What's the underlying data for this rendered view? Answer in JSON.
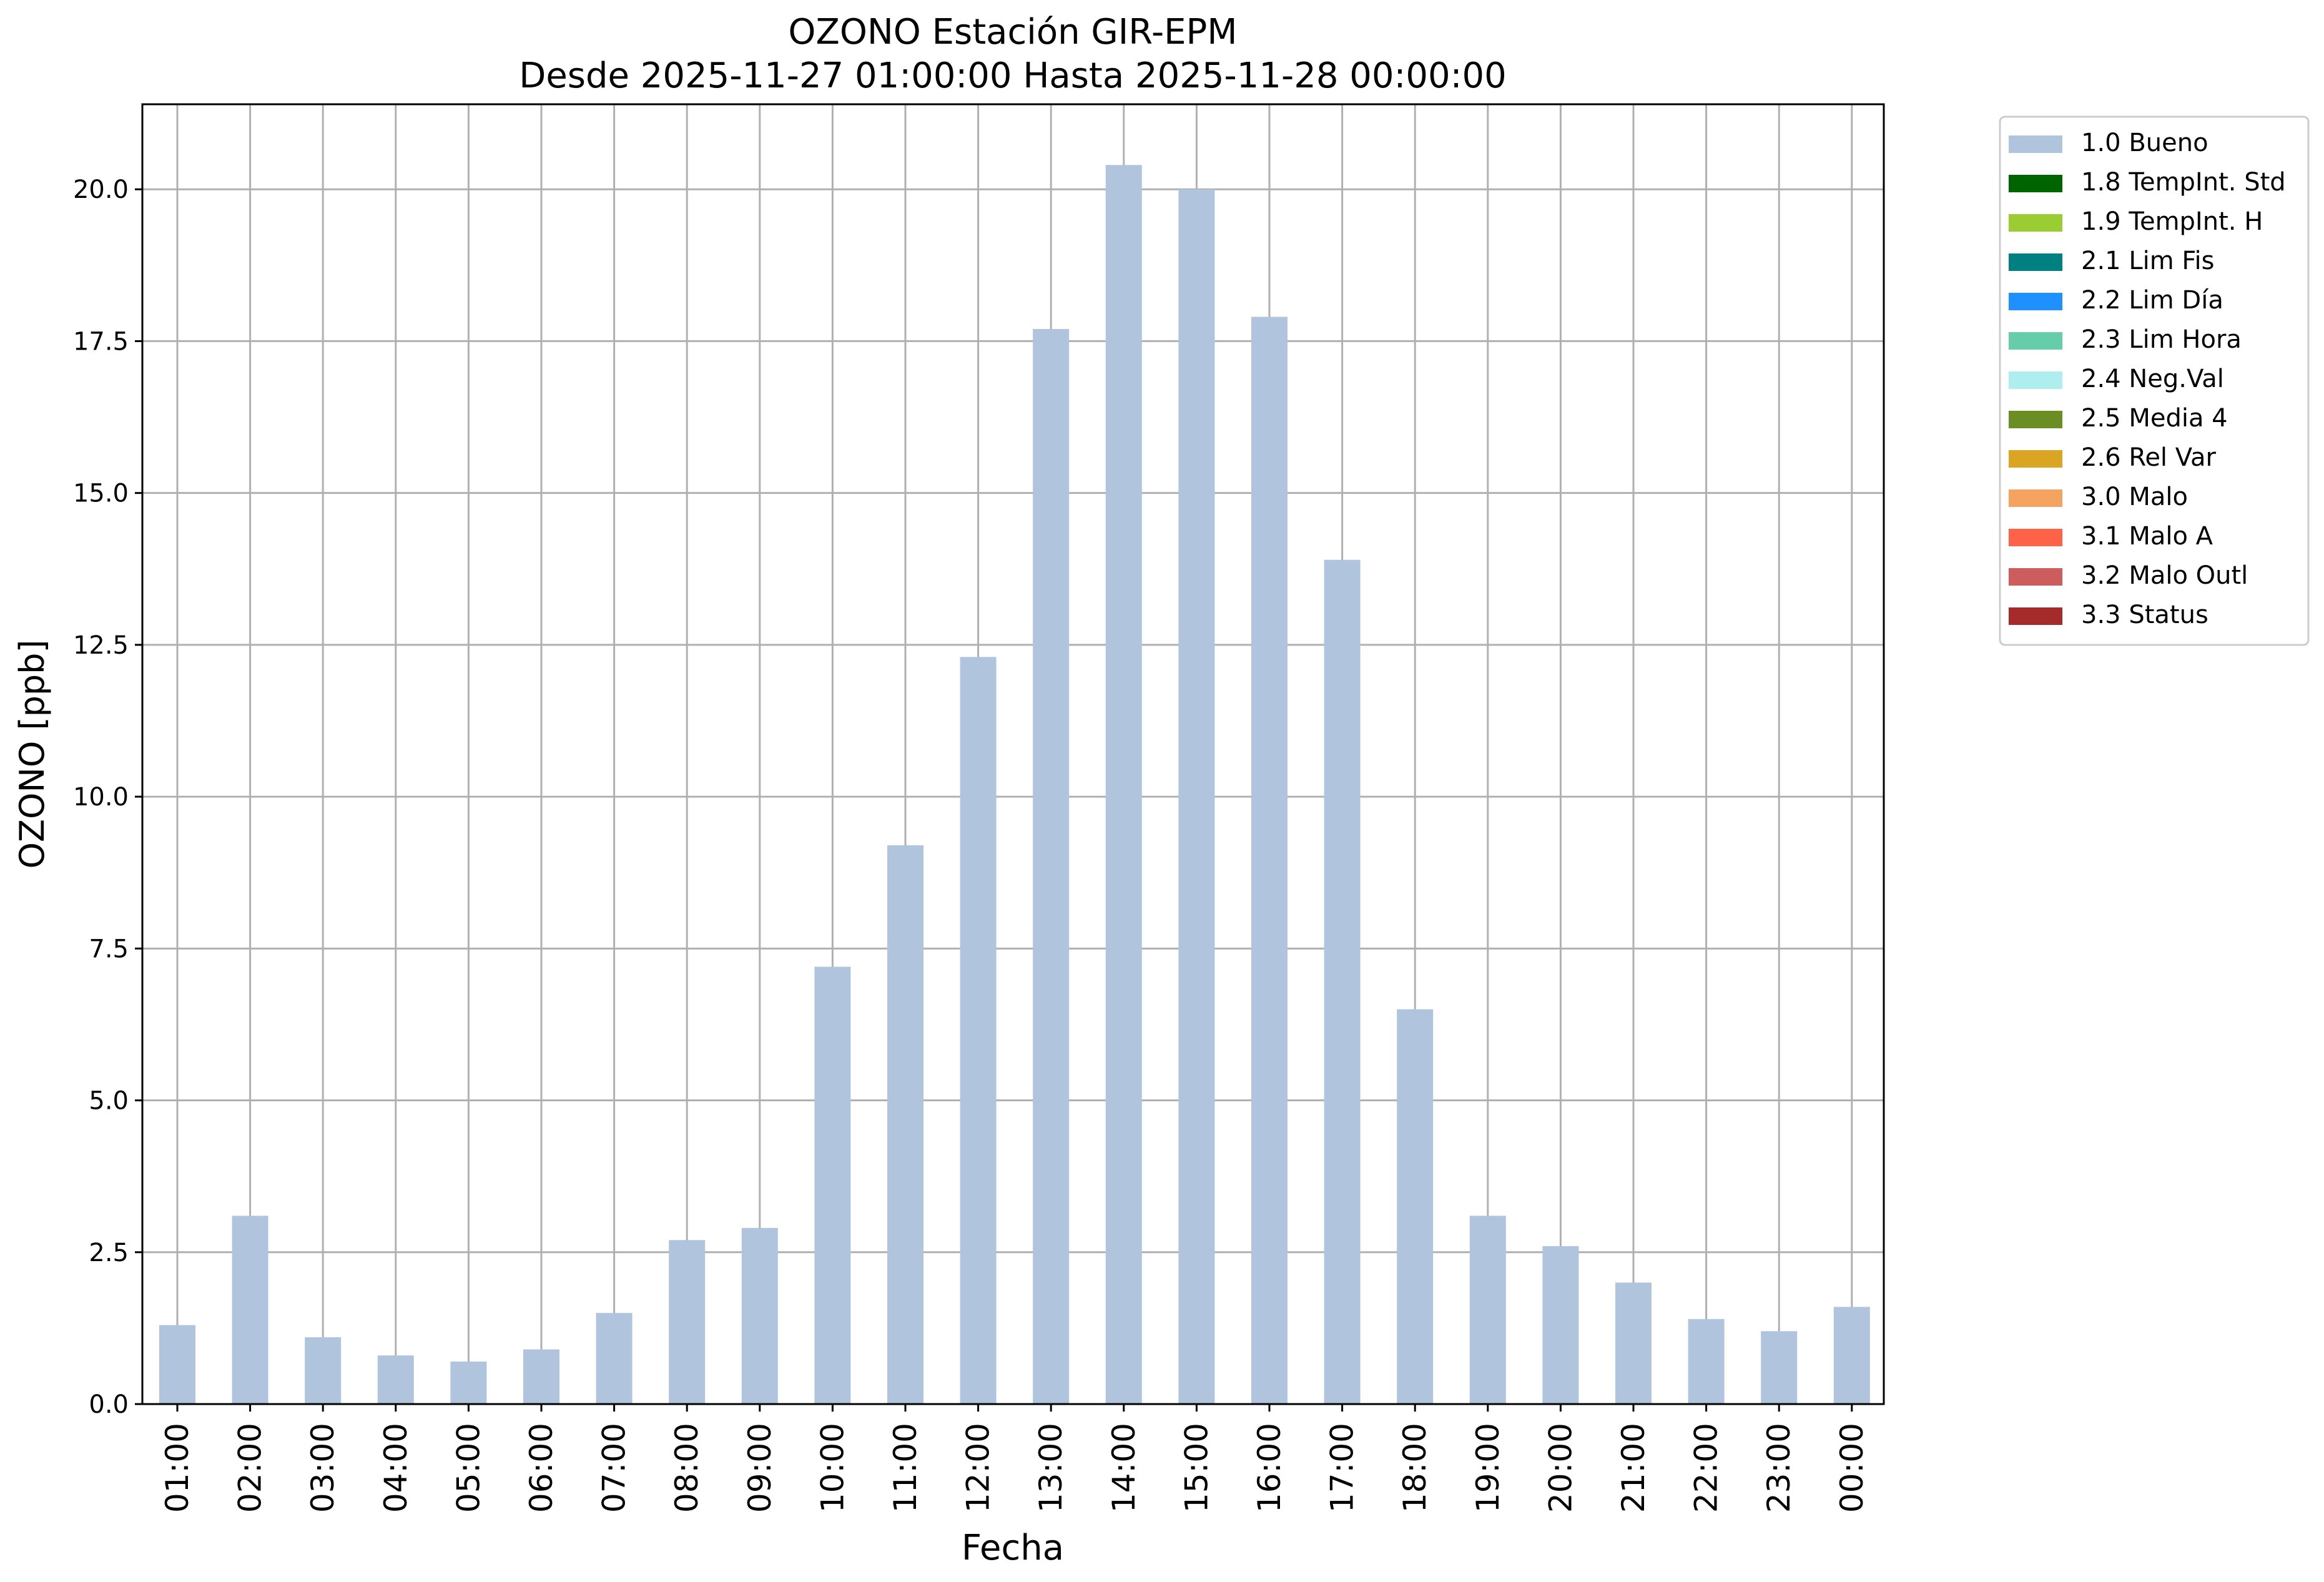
{
  "chart_data": {
    "type": "bar",
    "title": "OZONO Estación GIR-EPM",
    "subtitle": "Desde 2025-11-27 01:00:00 Hasta 2025-11-28 00:00:00",
    "xlabel": "Fecha",
    "ylabel": "OZONO [ppb]",
    "ylim": [
      0,
      21.4
    ],
    "yticks": [
      "0.0",
      "2.5",
      "5.0",
      "7.5",
      "10.0",
      "12.5",
      "15.0",
      "17.5",
      "20.0"
    ],
    "grid": true,
    "legend_position": "outside-top-right",
    "categories": [
      "01:00",
      "02:00",
      "03:00",
      "04:00",
      "05:00",
      "06:00",
      "07:00",
      "08:00",
      "09:00",
      "10:00",
      "11:00",
      "12:00",
      "13:00",
      "14:00",
      "15:00",
      "16:00",
      "17:00",
      "18:00",
      "19:00",
      "20:00",
      "21:00",
      "22:00",
      "23:00",
      "00:00"
    ],
    "series": [
      {
        "name": "1.0 Bueno",
        "color": "#b0c4de",
        "values": [
          1.3,
          3.1,
          1.1,
          0.8,
          0.7,
          0.9,
          1.5,
          2.7,
          2.9,
          7.2,
          9.2,
          12.3,
          17.7,
          20.4,
          20.0,
          17.9,
          13.9,
          6.5,
          3.1,
          2.6,
          2.0,
          1.4,
          1.2,
          1.6
        ]
      }
    ],
    "legend": [
      {
        "label": "1.0 Bueno",
        "color": "#b0c4de"
      },
      {
        "label": "1.8 TempInt. Std",
        "color": "#006400"
      },
      {
        "label": "1.9 TempInt. H",
        "color": "#9acd32"
      },
      {
        "label": "2.1 Lim Fis",
        "color": "#008080"
      },
      {
        "label": "2.2 Lim Día",
        "color": "#1e90ff"
      },
      {
        "label": "2.3 Lim Hora",
        "color": "#66cdaa"
      },
      {
        "label": "2.4 Neg.Val",
        "color": "#afeeee"
      },
      {
        "label": "2.5 Media 4",
        "color": "#6b8e23"
      },
      {
        "label": "2.6 Rel Var",
        "color": "#daa520"
      },
      {
        "label": "3.0 Malo",
        "color": "#f4a460"
      },
      {
        "label": "3.1 Malo A",
        "color": "#ff6347"
      },
      {
        "label": "3.2 Malo Outl",
        "color": "#cd5c5c"
      },
      {
        "label": "3.3 Status",
        "color": "#a52a2a"
      }
    ]
  }
}
